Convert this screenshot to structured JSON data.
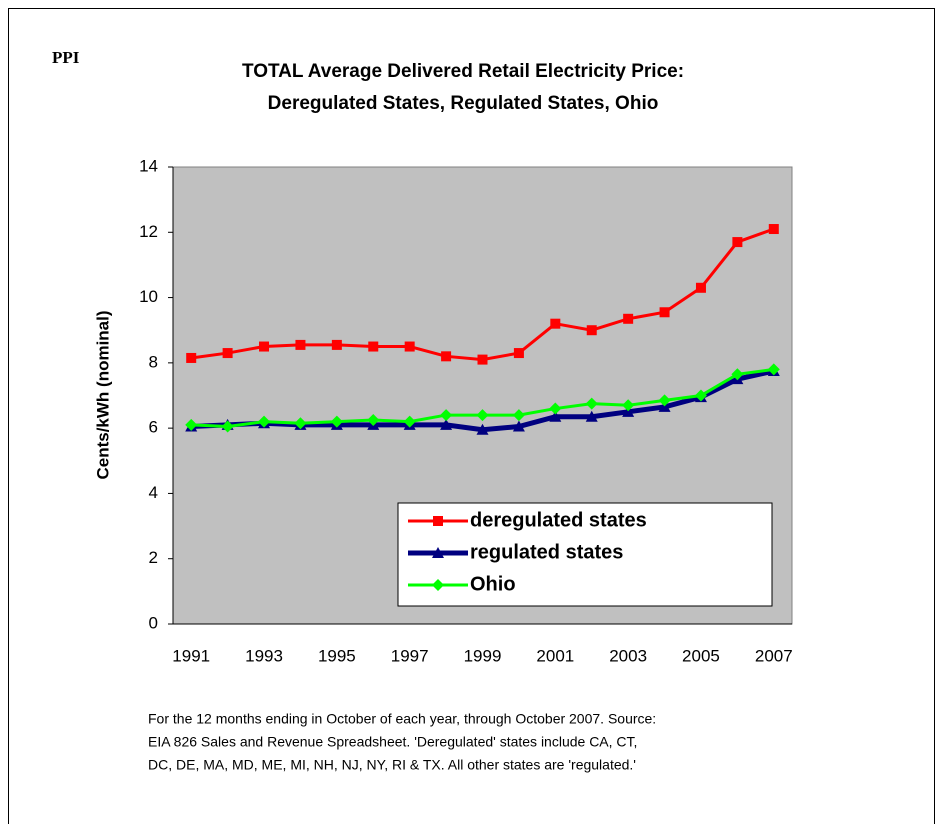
{
  "chart_data": {
    "type": "line",
    "label": "PPI",
    "title": [
      "TOTAL Average Delivered Retail Electricity Price:",
      "Deregulated States, Regulated States, Ohio"
    ],
    "y_label": "Cents/kWh (nominal)",
    "x": [
      1991,
      1992,
      1993,
      1994,
      1995,
      1996,
      1997,
      1998,
      1999,
      2000,
      2001,
      2002,
      2003,
      2004,
      2005,
      2006,
      2007
    ],
    "series": [
      {
        "name": "deregulated states",
        "color": "#ff0000",
        "marker": "square",
        "values": [
          8.15,
          8.3,
          8.5,
          8.55,
          8.55,
          8.5,
          8.5,
          8.2,
          8.1,
          8.3,
          9.2,
          9.0,
          9.35,
          9.55,
          10.3,
          11.7,
          12.1
        ]
      },
      {
        "name": "regulated states",
        "color": "#000080",
        "marker": "triangle",
        "values": [
          6.05,
          6.1,
          6.15,
          6.1,
          6.1,
          6.1,
          6.1,
          6.1,
          5.95,
          6.05,
          6.35,
          6.35,
          6.5,
          6.65,
          6.95,
          7.5,
          7.75
        ]
      },
      {
        "name": "Ohio",
        "color": "#00ff00",
        "marker": "diamond",
        "values": [
          6.1,
          6.05,
          6.2,
          6.15,
          6.2,
          6.25,
          6.2,
          6.4,
          6.4,
          6.4,
          6.6,
          6.75,
          6.7,
          6.85,
          7.0,
          7.65,
          7.8
        ]
      }
    ],
    "xlim": [
      1990.5,
      2007.5
    ],
    "xticks": [
      1991,
      1993,
      1995,
      1997,
      1999,
      2001,
      2003,
      2005,
      2007
    ],
    "ylim": [
      0,
      14
    ],
    "yticks": [
      0,
      2,
      4,
      6,
      8,
      10,
      12,
      14
    ],
    "grid": false,
    "plot_background": "#c0c0c0",
    "legend": "lower right",
    "notes": [
      "For the 12 months ending in October of each year, through October 2007.  Source:",
      "EIA 826 Sales and Revenue Spreadsheet.  'Deregulated' states include CA, CT,",
      "DC, DE, MA, MD, ME, MI, NH, NJ, NY, RI & TX.  All other states are 'regulated.'"
    ]
  }
}
